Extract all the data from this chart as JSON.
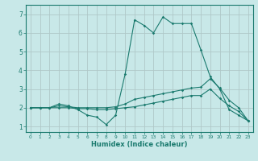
{
  "bg_color": "#c8e8e8",
  "grid_color": "#b0c8c8",
  "line_color": "#1a7a6e",
  "xlabel": "Humidex (Indice chaleur)",
  "xlim": [
    -0.5,
    23.5
  ],
  "ylim": [
    0.7,
    7.5
  ],
  "xticks": [
    0,
    1,
    2,
    3,
    4,
    5,
    6,
    7,
    8,
    9,
    10,
    11,
    12,
    13,
    14,
    15,
    16,
    17,
    18,
    19,
    20,
    21,
    22,
    23
  ],
  "yticks": [
    1,
    2,
    3,
    4,
    5,
    6,
    7
  ],
  "line1_x": [
    0,
    1,
    2,
    3,
    4,
    5,
    6,
    7,
    8,
    9,
    10,
    11,
    12,
    13,
    14,
    15,
    16,
    17,
    18,
    19,
    20,
    21,
    22,
    23
  ],
  "line1_y": [
    2.0,
    2.0,
    2.0,
    2.2,
    2.1,
    1.9,
    1.6,
    1.5,
    1.1,
    1.6,
    3.8,
    6.7,
    6.4,
    6.0,
    6.85,
    6.5,
    6.5,
    6.5,
    5.1,
    3.65,
    3.0,
    1.9,
    1.6,
    1.3
  ],
  "line2_x": [
    0,
    1,
    2,
    3,
    4,
    5,
    6,
    7,
    8,
    9,
    10,
    11,
    12,
    13,
    14,
    15,
    16,
    17,
    18,
    19,
    20,
    21,
    22,
    23
  ],
  "line2_y": [
    2.0,
    2.0,
    2.0,
    2.1,
    2.05,
    2.0,
    2.0,
    2.0,
    2.0,
    2.05,
    2.2,
    2.45,
    2.55,
    2.65,
    2.75,
    2.85,
    2.95,
    3.05,
    3.1,
    3.55,
    3.05,
    2.4,
    2.0,
    1.3
  ],
  "line3_x": [
    0,
    1,
    2,
    3,
    4,
    5,
    6,
    7,
    8,
    9,
    10,
    11,
    12,
    13,
    14,
    15,
    16,
    17,
    18,
    19,
    20,
    21,
    22,
    23
  ],
  "line3_y": [
    2.0,
    2.0,
    2.0,
    2.0,
    2.0,
    1.95,
    1.95,
    1.9,
    1.9,
    1.95,
    2.0,
    2.05,
    2.15,
    2.25,
    2.35,
    2.45,
    2.55,
    2.65,
    2.65,
    3.0,
    2.5,
    2.1,
    1.8,
    1.3
  ]
}
